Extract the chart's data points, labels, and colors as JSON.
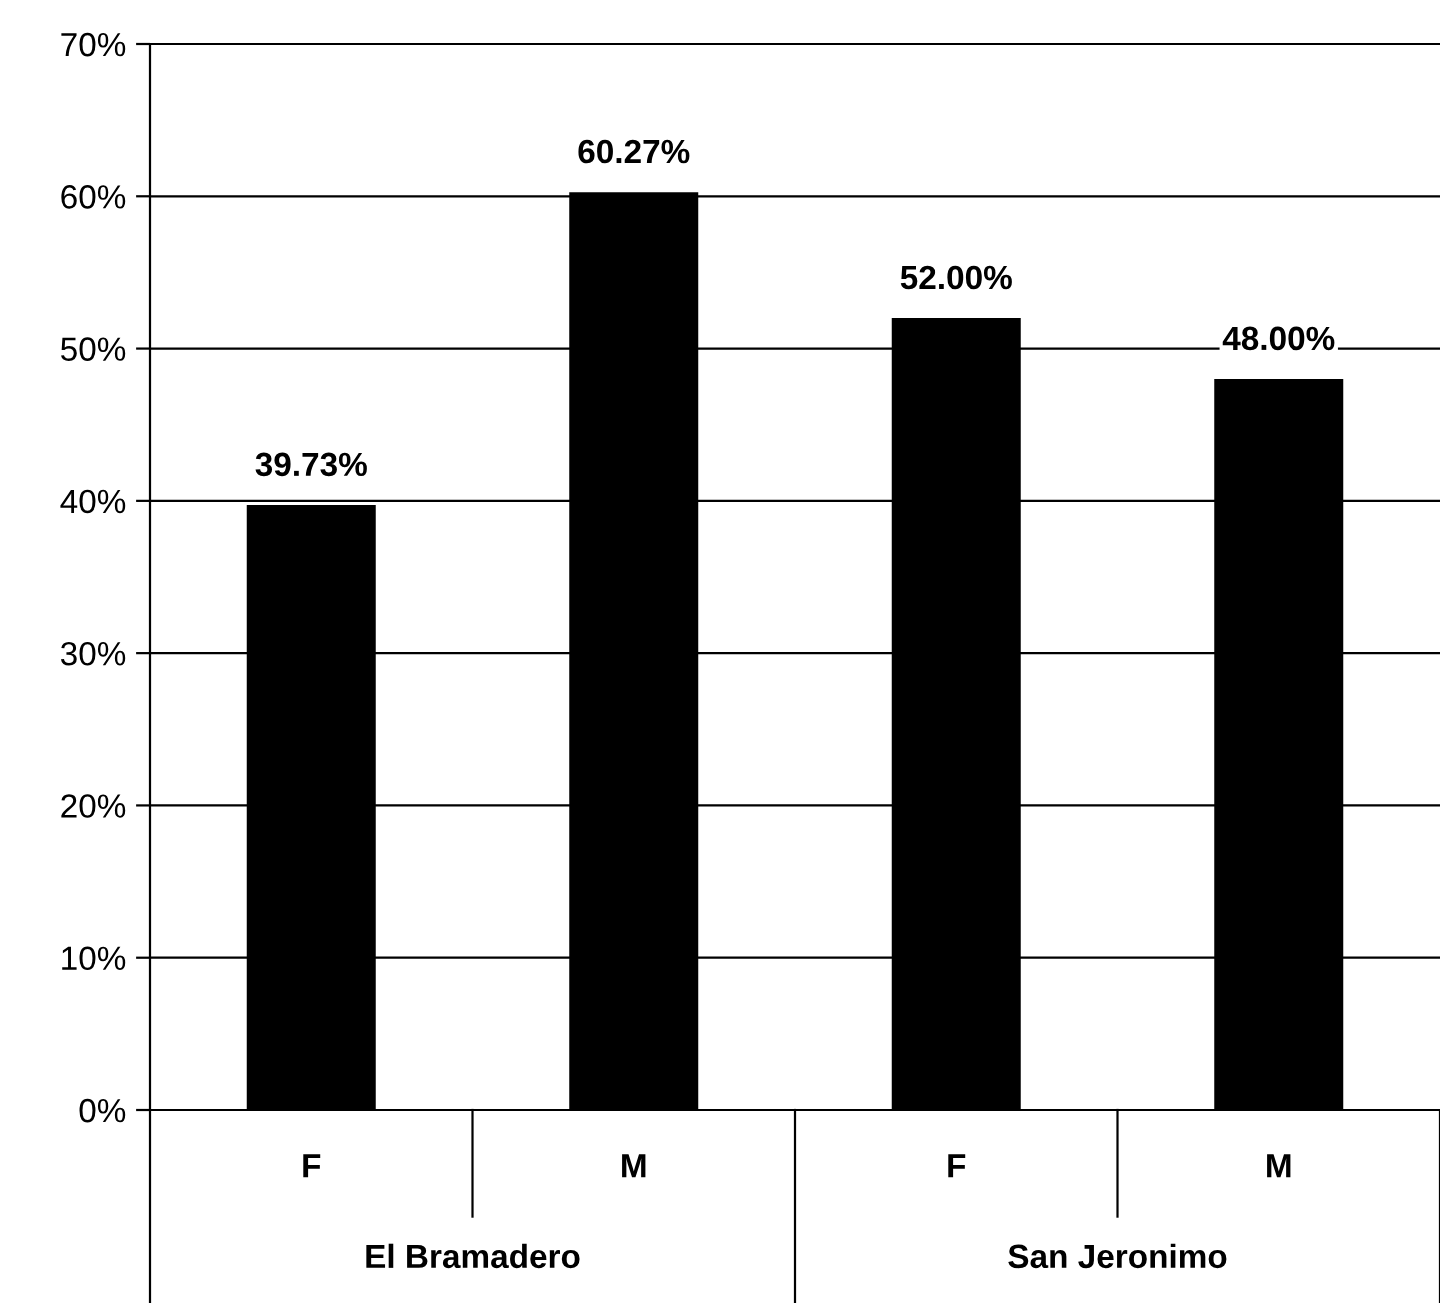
{
  "chart_data": {
    "type": "bar",
    "categories": [
      "F",
      "M",
      "F",
      "M"
    ],
    "values": [
      39.73,
      60.27,
      52.0,
      48.0
    ],
    "color": "#000000",
    "value_labels": [
      "39.73%",
      "60.27%",
      "52.00%",
      "48.00%"
    ],
    "ylim": [
      0,
      70
    ],
    "yticks": [
      {
        "value": 0,
        "label": "0%"
      },
      {
        "value": 10,
        "label": "10%"
      },
      {
        "value": 20,
        "label": "20%"
      },
      {
        "value": 30,
        "label": "30%"
      },
      {
        "value": 40,
        "label": "40%"
      },
      {
        "value": 50,
        "label": "50%"
      },
      {
        "value": 60,
        "label": "60%"
      },
      {
        "value": 70,
        "label": "70%"
      }
    ],
    "grid": "y",
    "annotations": [
      "El Bramadero",
      "San Jeronimo"
    ]
  }
}
